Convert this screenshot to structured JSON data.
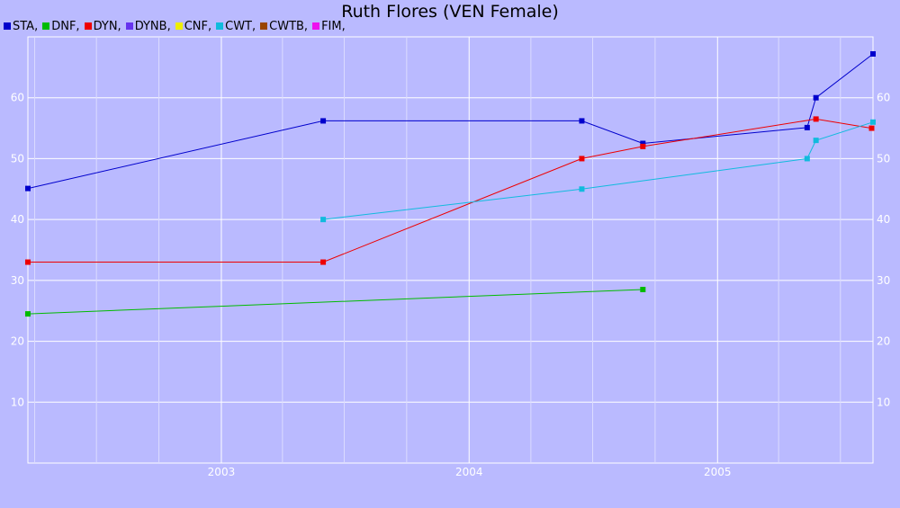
{
  "chart_data": {
    "type": "line",
    "title": "Ruth Flores (VEN Female)",
    "xlabel": "",
    "ylabel": "",
    "x_tick_labels": [
      "2003",
      "2004",
      "2005"
    ],
    "y_tick_labels": [
      "10",
      "20",
      "30",
      "40",
      "50",
      "60"
    ],
    "xlim": [
      "2002-03-22",
      "2005-08-18"
    ],
    "ylim": [
      0,
      70
    ],
    "grid": true,
    "legend_position": "top-left",
    "legend": [
      {
        "label": "STA,",
        "color": "#0000cc"
      },
      {
        "label": "DNF,",
        "color": "#00bb00"
      },
      {
        "label": "DYN,",
        "color": "#ee0000"
      },
      {
        "label": "DYNB,",
        "color": "#6633ee"
      },
      {
        "label": "CNF,",
        "color": "#eeee00"
      },
      {
        "label": "CWT,",
        "color": "#11bbdd"
      },
      {
        "label": "CWTB,",
        "color": "#994400"
      },
      {
        "label": "FIM,",
        "color": "#ee11ee"
      }
    ],
    "series": [
      {
        "name": "STA",
        "color": "#0000cc",
        "points": [
          {
            "x": "2002-03-22",
            "y": 45.1
          },
          {
            "x": "2003-05-31",
            "y": 56.2
          },
          {
            "x": "2004-06-15",
            "y": 56.2
          },
          {
            "x": "2004-09-13",
            "y": 52.5
          },
          {
            "x": "2005-05-13",
            "y": 55.1
          },
          {
            "x": "2005-05-26",
            "y": 60.0
          },
          {
            "x": "2005-08-18",
            "y": 67.2
          }
        ]
      },
      {
        "name": "DNF",
        "color": "#00bb00",
        "points": [
          {
            "x": "2002-03-22",
            "y": 24.5
          },
          {
            "x": "2004-09-13",
            "y": 28.5
          }
        ]
      },
      {
        "name": "DYN",
        "color": "#ee0000",
        "points": [
          {
            "x": "2002-03-22",
            "y": 33.0
          },
          {
            "x": "2003-05-31",
            "y": 33.0
          },
          {
            "x": "2004-06-15",
            "y": 50.0
          },
          {
            "x": "2004-09-13",
            "y": 52.0
          },
          {
            "x": "2005-05-26",
            "y": 56.5
          },
          {
            "x": "2005-08-16",
            "y": 55.0
          }
        ]
      },
      {
        "name": "CWT",
        "color": "#11bbdd",
        "points": [
          {
            "x": "2003-05-31",
            "y": 40.0
          },
          {
            "x": "2004-06-15",
            "y": 45.0
          },
          {
            "x": "2005-05-13",
            "y": 50.0
          },
          {
            "x": "2005-05-26",
            "y": 53.0
          },
          {
            "x": "2005-08-18",
            "y": 56.0
          }
        ]
      }
    ]
  }
}
